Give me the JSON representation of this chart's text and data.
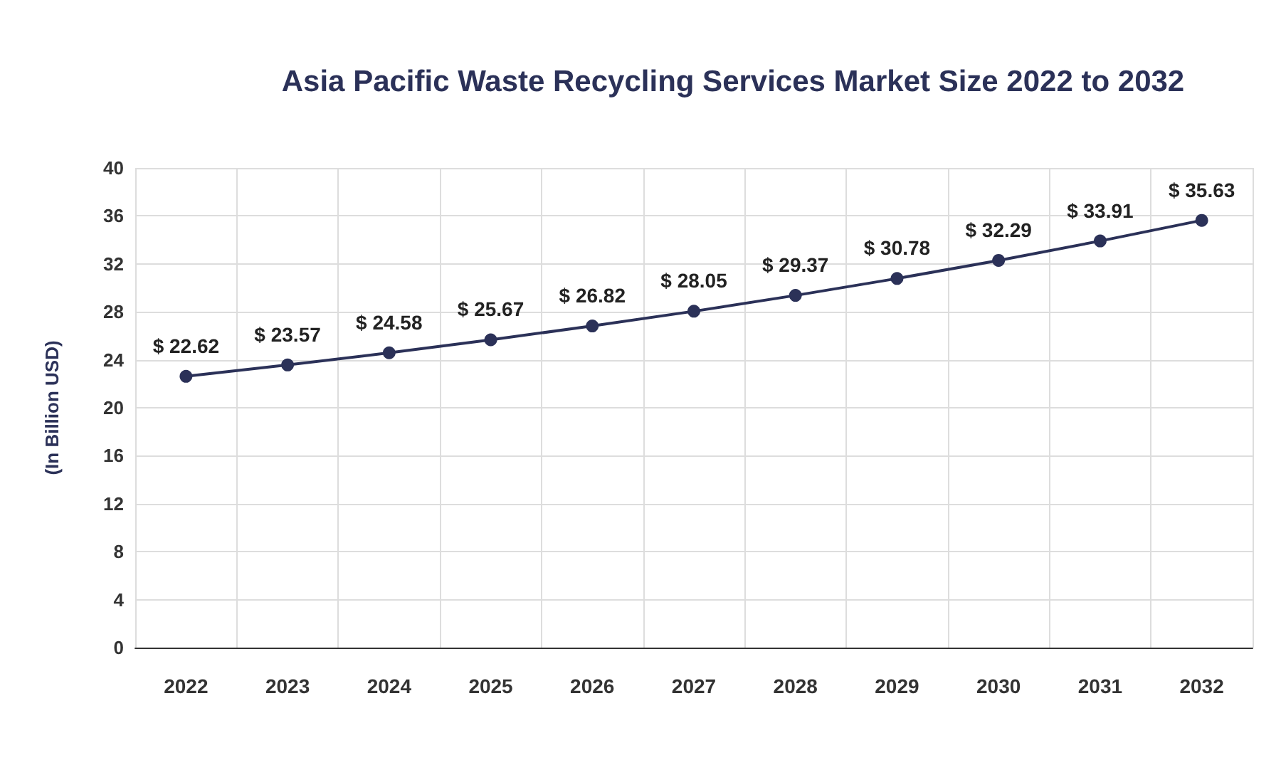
{
  "chart_data": {
    "type": "line",
    "title": "Asia Pacific Waste Recycling Services Market Size 2022 to 2032",
    "ylabel": "(In Billion USD)",
    "categories": [
      "2022",
      "2023",
      "2024",
      "2025",
      "2026",
      "2027",
      "2028",
      "2029",
      "2030",
      "2031",
      "2032"
    ],
    "series": [
      {
        "color": "#2b3158",
        "values": [
          22.62,
          23.57,
          24.58,
          25.67,
          26.82,
          28.05,
          29.37,
          30.78,
          32.29,
          33.91,
          35.63
        ],
        "value_labels": [
          "$ 22.62",
          "$ 23.57",
          "$ 24.58",
          "$ 25.67",
          "$ 26.82",
          "$ 28.05",
          "$ 29.37",
          "$ 30.78",
          "$ 32.29",
          "$ 33.91",
          "$ 35.63"
        ]
      }
    ],
    "ylim": [
      0,
      40
    ],
    "yticks": [
      0,
      4,
      8,
      12,
      16,
      20,
      24,
      28,
      32,
      36,
      40
    ],
    "grid": true,
    "marker": "circle",
    "line_style": "solid"
  }
}
